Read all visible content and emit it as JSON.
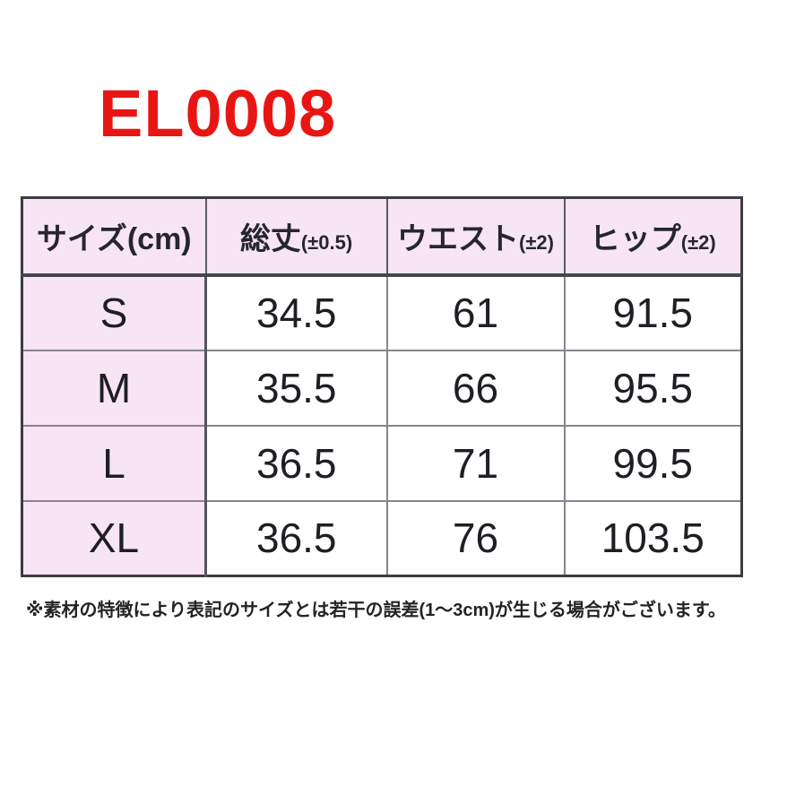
{
  "page": {
    "title": "EL0008",
    "background_color": "#ffffff"
  },
  "colors": {
    "title_red": "#e81613",
    "header_pink": "#f7e5f3",
    "cell_white": "#ffffff",
    "border_dark": "#3c3c42",
    "border_light": "#85858c",
    "text_dark": "#1e1e24"
  },
  "table": {
    "headers": [
      {
        "label": "サイズ(cm)",
        "tolerance": ""
      },
      {
        "label": "総丈",
        "tolerance": "(±0.5)"
      },
      {
        "label": "ウエスト",
        "tolerance": "(±2)"
      },
      {
        "label": "ヒップ",
        "tolerance": "(±2)"
      }
    ],
    "rows": [
      {
        "size": "S",
        "total_length": "34.5",
        "waist": "61",
        "hip": "91.5"
      },
      {
        "size": "M",
        "total_length": "35.5",
        "waist": "66",
        "hip": "95.5"
      },
      {
        "size": "L",
        "total_length": "36.5",
        "waist": "71",
        "hip": "99.5"
      },
      {
        "size": "XL",
        "total_length": "36.5",
        "waist": "76",
        "hip": "103.5"
      }
    ]
  },
  "chart_data": {
    "type": "table",
    "title": "EL0008",
    "columns": [
      "サイズ(cm)",
      "総丈(±0.5)",
      "ウエスト(±2)",
      "ヒップ(±2)"
    ],
    "rows": [
      [
        "S",
        34.5,
        61,
        91.5
      ],
      [
        "M",
        35.5,
        66,
        95.5
      ],
      [
        "L",
        36.5,
        71,
        99.5
      ],
      [
        "XL",
        36.5,
        76,
        103.5
      ]
    ]
  },
  "footnote": "※素材の特徴により表記のサイズとは若干の誤差(1～3cm)が生じる場合がございます。"
}
